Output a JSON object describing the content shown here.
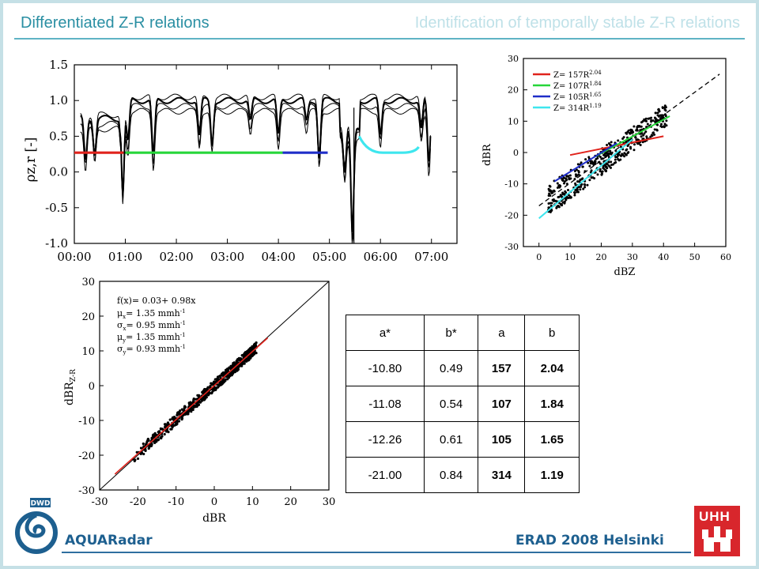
{
  "header": {
    "title_left": "Differentiated Z-R relations",
    "title_right": "Identification of temporally stable Z-R relations"
  },
  "footer": {
    "left": "AQUARadar",
    "right": "ERAD 2008 Helsinki"
  },
  "logos": {
    "dwd_text": "DWD",
    "uhh_text": "UHH"
  },
  "colors": {
    "red": "#e0231c",
    "green": "#27d63a",
    "blue": "#1f2ec8",
    "cyan": "#3ee6ee"
  },
  "chart_data": [
    {
      "type": "line",
      "ylabel": "ρz,r [-]",
      "ylim": [
        -1.0,
        1.5
      ],
      "yticks": [
        "1.5",
        "1.0",
        "0.5",
        "0.0",
        "-0.5",
        "-1.0"
      ],
      "xticks": [
        "00:00",
        "01:00",
        "02:00",
        "03:00",
        "04:00",
        "05:00",
        "06:00",
        "07:00"
      ],
      "segments": [
        {
          "color": "red",
          "start": "00:00",
          "end": "00:58",
          "value": 0.27
        },
        {
          "color": "green",
          "start": "01:00",
          "end": "04:05",
          "value": 0.27
        },
        {
          "color": "blue",
          "start": "04:05",
          "end": "04:58",
          "value": 0.27
        },
        {
          "color": "cyan",
          "start": "05:35",
          "end": "06:45",
          "value": 0.27
        }
      ]
    },
    {
      "type": "scatter",
      "xlabel": "dBZ",
      "ylabel": "dBR",
      "xlim": [
        -5,
        60
      ],
      "ylim": [
        -30,
        30
      ],
      "xticks": [
        "0",
        "10",
        "20",
        "30",
        "40",
        "50",
        "60"
      ],
      "yticks": [
        "30",
        "20",
        "10",
        "0",
        "-10",
        "-20",
        "-30"
      ],
      "legend_labels": [
        {
          "text": "Z= 157R",
          "exp": "2.04",
          "color": "red"
        },
        {
          "text": "Z= 107R",
          "exp": "1.84",
          "color": "green"
        },
        {
          "text": "Z= 105R",
          "exp": "1.65",
          "color": "blue"
        },
        {
          "text": "Z= 314R",
          "exp": "1.19",
          "color": "cyan"
        }
      ]
    },
    {
      "type": "scatter",
      "xlabel": "dBR",
      "ylabel": "dBRZ-R",
      "xlim": [
        -30,
        30
      ],
      "ylim": [
        -30,
        30
      ],
      "xticks": [
        "-30",
        "-20",
        "-10",
        "0",
        "10",
        "20",
        "30"
      ],
      "yticks": [
        "30",
        "20",
        "10",
        "0",
        "-10",
        "-20",
        "-30"
      ],
      "fit": "f(x)=  0.03+ 0.98x",
      "annotations": [
        {
          "sym": "μ",
          "sub": "x",
          "text": "= 1.35 mmh",
          "sup": "-1"
        },
        {
          "sym": "σ",
          "sub": "x",
          "text": "= 0.95 mmh",
          "sup": "-1"
        },
        {
          "sym": "μ",
          "sub": "y",
          "text": "= 1.35 mmh",
          "sup": "-1"
        },
        {
          "sym": "σ",
          "sub": "y",
          "text": "= 0.93 mmh",
          "sup": "-1"
        }
      ]
    },
    {
      "type": "table",
      "headers": [
        "a*",
        "b*",
        "a",
        "b"
      ],
      "rows": [
        [
          "-10.80",
          "0.49",
          "157",
          "2.04"
        ],
        [
          "-11.08",
          "0.54",
          "107",
          "1.84"
        ],
        [
          "-12.26",
          "0.61",
          "105",
          "1.65"
        ],
        [
          "-21.00",
          "0.84",
          "314",
          "1.19"
        ]
      ]
    }
  ]
}
